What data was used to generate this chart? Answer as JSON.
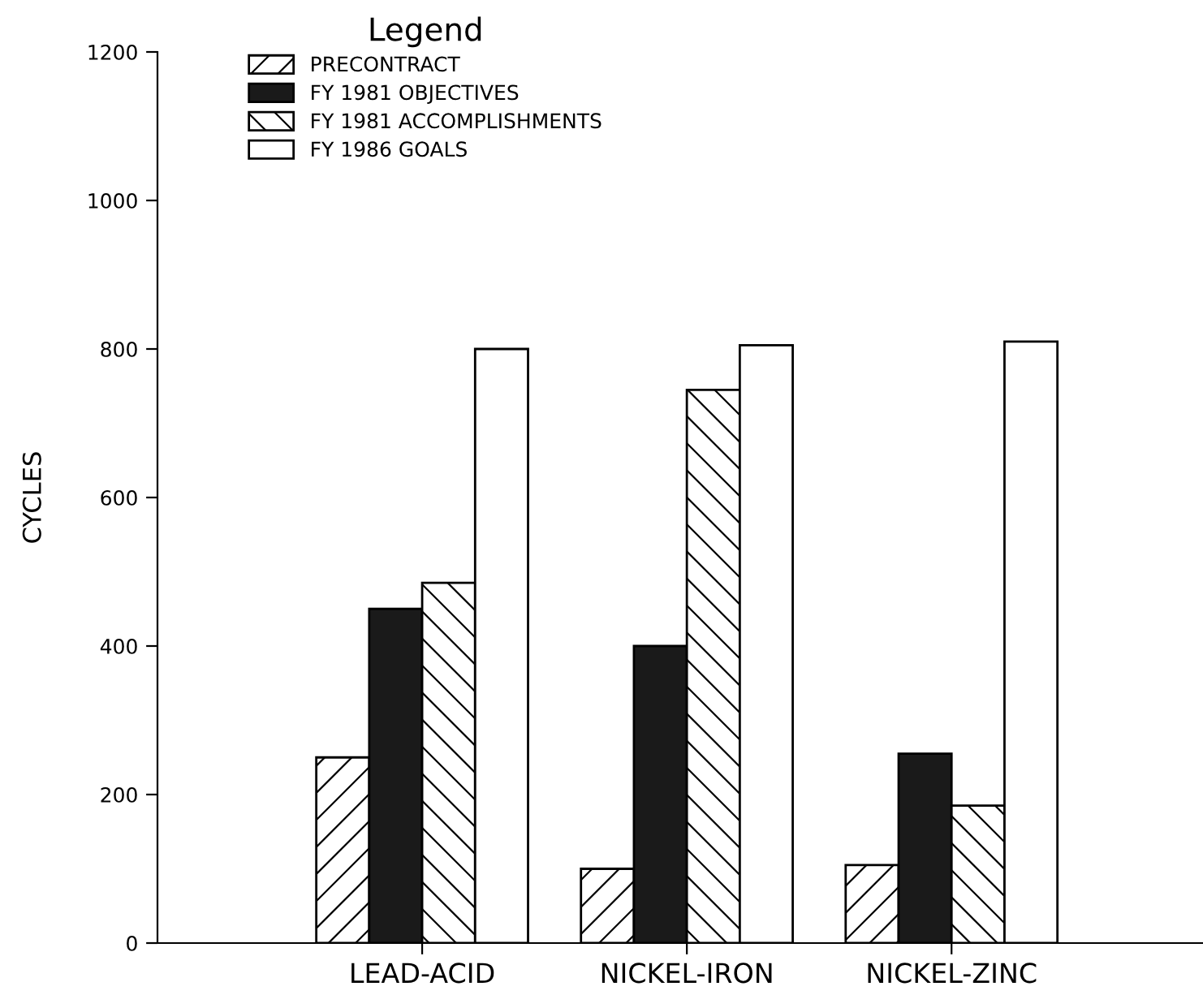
{
  "chart_data": {
    "type": "bar",
    "ylabel": "CYCLES",
    "legend_title": "Legend",
    "legend": "top left",
    "categories": [
      "LEAD-ACID",
      "NICKEL-IRON",
      "NICKEL-ZINC"
    ],
    "series": [
      {
        "name": "PRECONTRACT",
        "color": "#000000",
        "values": [
          250,
          100,
          105
        ]
      },
      {
        "name": "FY 1981 OBJECTIVES",
        "color": "#1a1a1a",
        "values": [
          450,
          400,
          255
        ]
      },
      {
        "name": "FY 1981 ACCOMPLISHMENTS",
        "color": "#000000",
        "values": [
          485,
          745,
          185
        ]
      },
      {
        "name": "FY 1986 GOALS",
        "color": "#ffffff",
        "values": [
          800,
          805,
          810
        ]
      }
    ],
    "ylim": [
      0,
      1200
    ],
    "yticks": [
      0,
      200,
      400,
      600,
      800,
      1000,
      1200
    ],
    "grid": false
  }
}
